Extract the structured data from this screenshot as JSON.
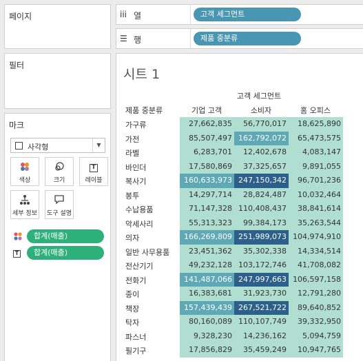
{
  "panels": {
    "pages_title": "페이지",
    "filters_title": "필터",
    "marks_title": "마크"
  },
  "marks": {
    "type_label": "사각형",
    "buttons": {
      "color": "색상",
      "size": "크기",
      "label": "레이블",
      "detail": "세부 정보",
      "tooltip": "도구 설명"
    },
    "pills": [
      "합계(매출)",
      "합계(매출)"
    ]
  },
  "shelves": {
    "columns_label": "열",
    "columns_pill": "고객 세그먼트",
    "rows_label": "행",
    "rows_pill": "제품 중분류"
  },
  "sheet": {
    "title": "시트 1",
    "column_group": "고객 세그먼트",
    "row_header": "제품 중분류"
  },
  "colors": {
    "light": "#b0dfd2",
    "mid": "#5fa9b7",
    "dark": "#2c5f8a",
    "pill_measure": "#2eb07a",
    "pill_dimension": "#4996b2"
  },
  "chart_data": {
    "type": "table",
    "columns": [
      "기업 고객",
      "소비자",
      "홈 오피스"
    ],
    "rows": [
      {
        "label": "가구류",
        "values": [
          "27,662,835",
          "56,770,017",
          "18,625,890"
        ],
        "shades": [
          "light",
          "light",
          "light"
        ]
      },
      {
        "label": "가전",
        "values": [
          "85,507,497",
          "162,792,072",
          "65,473,575"
        ],
        "shades": [
          "light",
          "mid",
          "light"
        ]
      },
      {
        "label": "라벨",
        "values": [
          "6,283,701",
          "12,402,678",
          "4,083,147"
        ],
        "shades": [
          "light",
          "light",
          "light"
        ]
      },
      {
        "label": "바인더",
        "values": [
          "17,580,869",
          "37,325,657",
          "9,891,055"
        ],
        "shades": [
          "light",
          "light",
          "light"
        ]
      },
      {
        "label": "복사기",
        "values": [
          "160,633,973",
          "247,150,342",
          "96,701,236"
        ],
        "shades": [
          "mid",
          "dark",
          "light"
        ]
      },
      {
        "label": "봉투",
        "values": [
          "14,297,714",
          "28,824,487",
          "10,032,464"
        ],
        "shades": [
          "light",
          "light",
          "light"
        ]
      },
      {
        "label": "수납용품",
        "values": [
          "71,147,328",
          "110,408,437",
          "38,841,614"
        ],
        "shades": [
          "light",
          "light",
          "light"
        ]
      },
      {
        "label": "악세사리",
        "values": [
          "55,313,323",
          "99,384,173",
          "35,263,544"
        ],
        "shades": [
          "light",
          "light",
          "light"
        ]
      },
      {
        "label": "의자",
        "values": [
          "166,269,809",
          "251,989,073",
          "104,974,910"
        ],
        "shades": [
          "mid",
          "dark",
          "light"
        ]
      },
      {
        "label": "일반 사무용품",
        "values": [
          "23,451,362",
          "35,302,338",
          "14,334,514"
        ],
        "shades": [
          "light",
          "light",
          "light"
        ]
      },
      {
        "label": "전산기기",
        "values": [
          "49,232,128",
          "103,172,746",
          "41,708,082"
        ],
        "shades": [
          "light",
          "light",
          "light"
        ]
      },
      {
        "label": "전화기",
        "values": [
          "141,487,066",
          "247,997,663",
          "106,597,158"
        ],
        "shades": [
          "mid",
          "dark",
          "light"
        ]
      },
      {
        "label": "종이",
        "values": [
          "16,383,681",
          "31,923,730",
          "12,791,280"
        ],
        "shades": [
          "light",
          "light",
          "light"
        ]
      },
      {
        "label": "책장",
        "values": [
          "157,439,439",
          "267,521,722",
          "89,640,852"
        ],
        "shades": [
          "mid",
          "dark",
          "light"
        ]
      },
      {
        "label": "탁자",
        "values": [
          "80,160,089",
          "110,107,749",
          "39,332,950"
        ],
        "shades": [
          "light",
          "light",
          "light"
        ]
      },
      {
        "label": "파스너",
        "values": [
          "9,328,230",
          "14,236,162",
          "5,094,759"
        ],
        "shades": [
          "light",
          "light",
          "light"
        ]
      },
      {
        "label": "필기구",
        "values": [
          "17,856,829",
          "35,459,249",
          "10,947,765"
        ],
        "shades": [
          "light",
          "light",
          "light"
        ]
      }
    ]
  }
}
